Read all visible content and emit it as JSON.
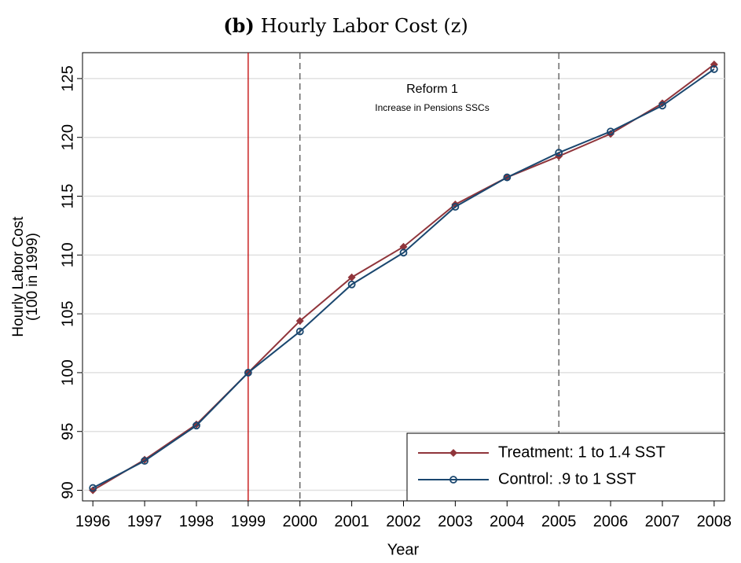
{
  "chart_data": {
    "type": "line",
    "title_prefix": "(b)",
    "title": "Hourly Labor Cost (z)",
    "xlabel": "Year",
    "ylabel": [
      "Hourly Labor Cost",
      "(100 in 1999)"
    ],
    "annotations": [
      "Reform 1",
      "Increase in Pensions SSCs"
    ],
    "x": [
      1996,
      1997,
      1998,
      1999,
      2000,
      2001,
      2002,
      2003,
      2004,
      2005,
      2006,
      2007,
      2008
    ],
    "series": [
      {
        "name": "Treatment: 1 to 1.4 SST",
        "color": "#90353b",
        "marker": "diamond",
        "values": [
          90.0,
          92.6,
          95.6,
          100,
          104.4,
          108.1,
          110.7,
          114.3,
          116.6,
          118.4,
          120.3,
          122.9,
          126.2
        ]
      },
      {
        "name": "Control: .9 to 1 SST",
        "color": "#1a476f",
        "marker": "circle",
        "values": [
          90.2,
          92.5,
          95.5,
          100,
          103.5,
          107.5,
          110.2,
          114.1,
          116.6,
          118.7,
          120.5,
          122.7,
          125.8
        ]
      }
    ],
    "vlines": [
      {
        "x": 1999,
        "color": "#c00000",
        "style": "solid"
      },
      {
        "x": 2000,
        "color": "#555555",
        "style": "dashed"
      },
      {
        "x": 2005,
        "color": "#555555",
        "style": "dashed"
      }
    ],
    "xlim": [
      1995.8,
      2008.2
    ],
    "xticks": [
      1996,
      1997,
      1998,
      1999,
      2000,
      2001,
      2002,
      2003,
      2004,
      2005,
      2006,
      2007,
      2008
    ],
    "ylim": [
      89.1,
      127.2
    ],
    "yticks": [
      90,
      95,
      100,
      105,
      110,
      115,
      120,
      125
    ],
    "grid": true,
    "legend": "lower right"
  }
}
